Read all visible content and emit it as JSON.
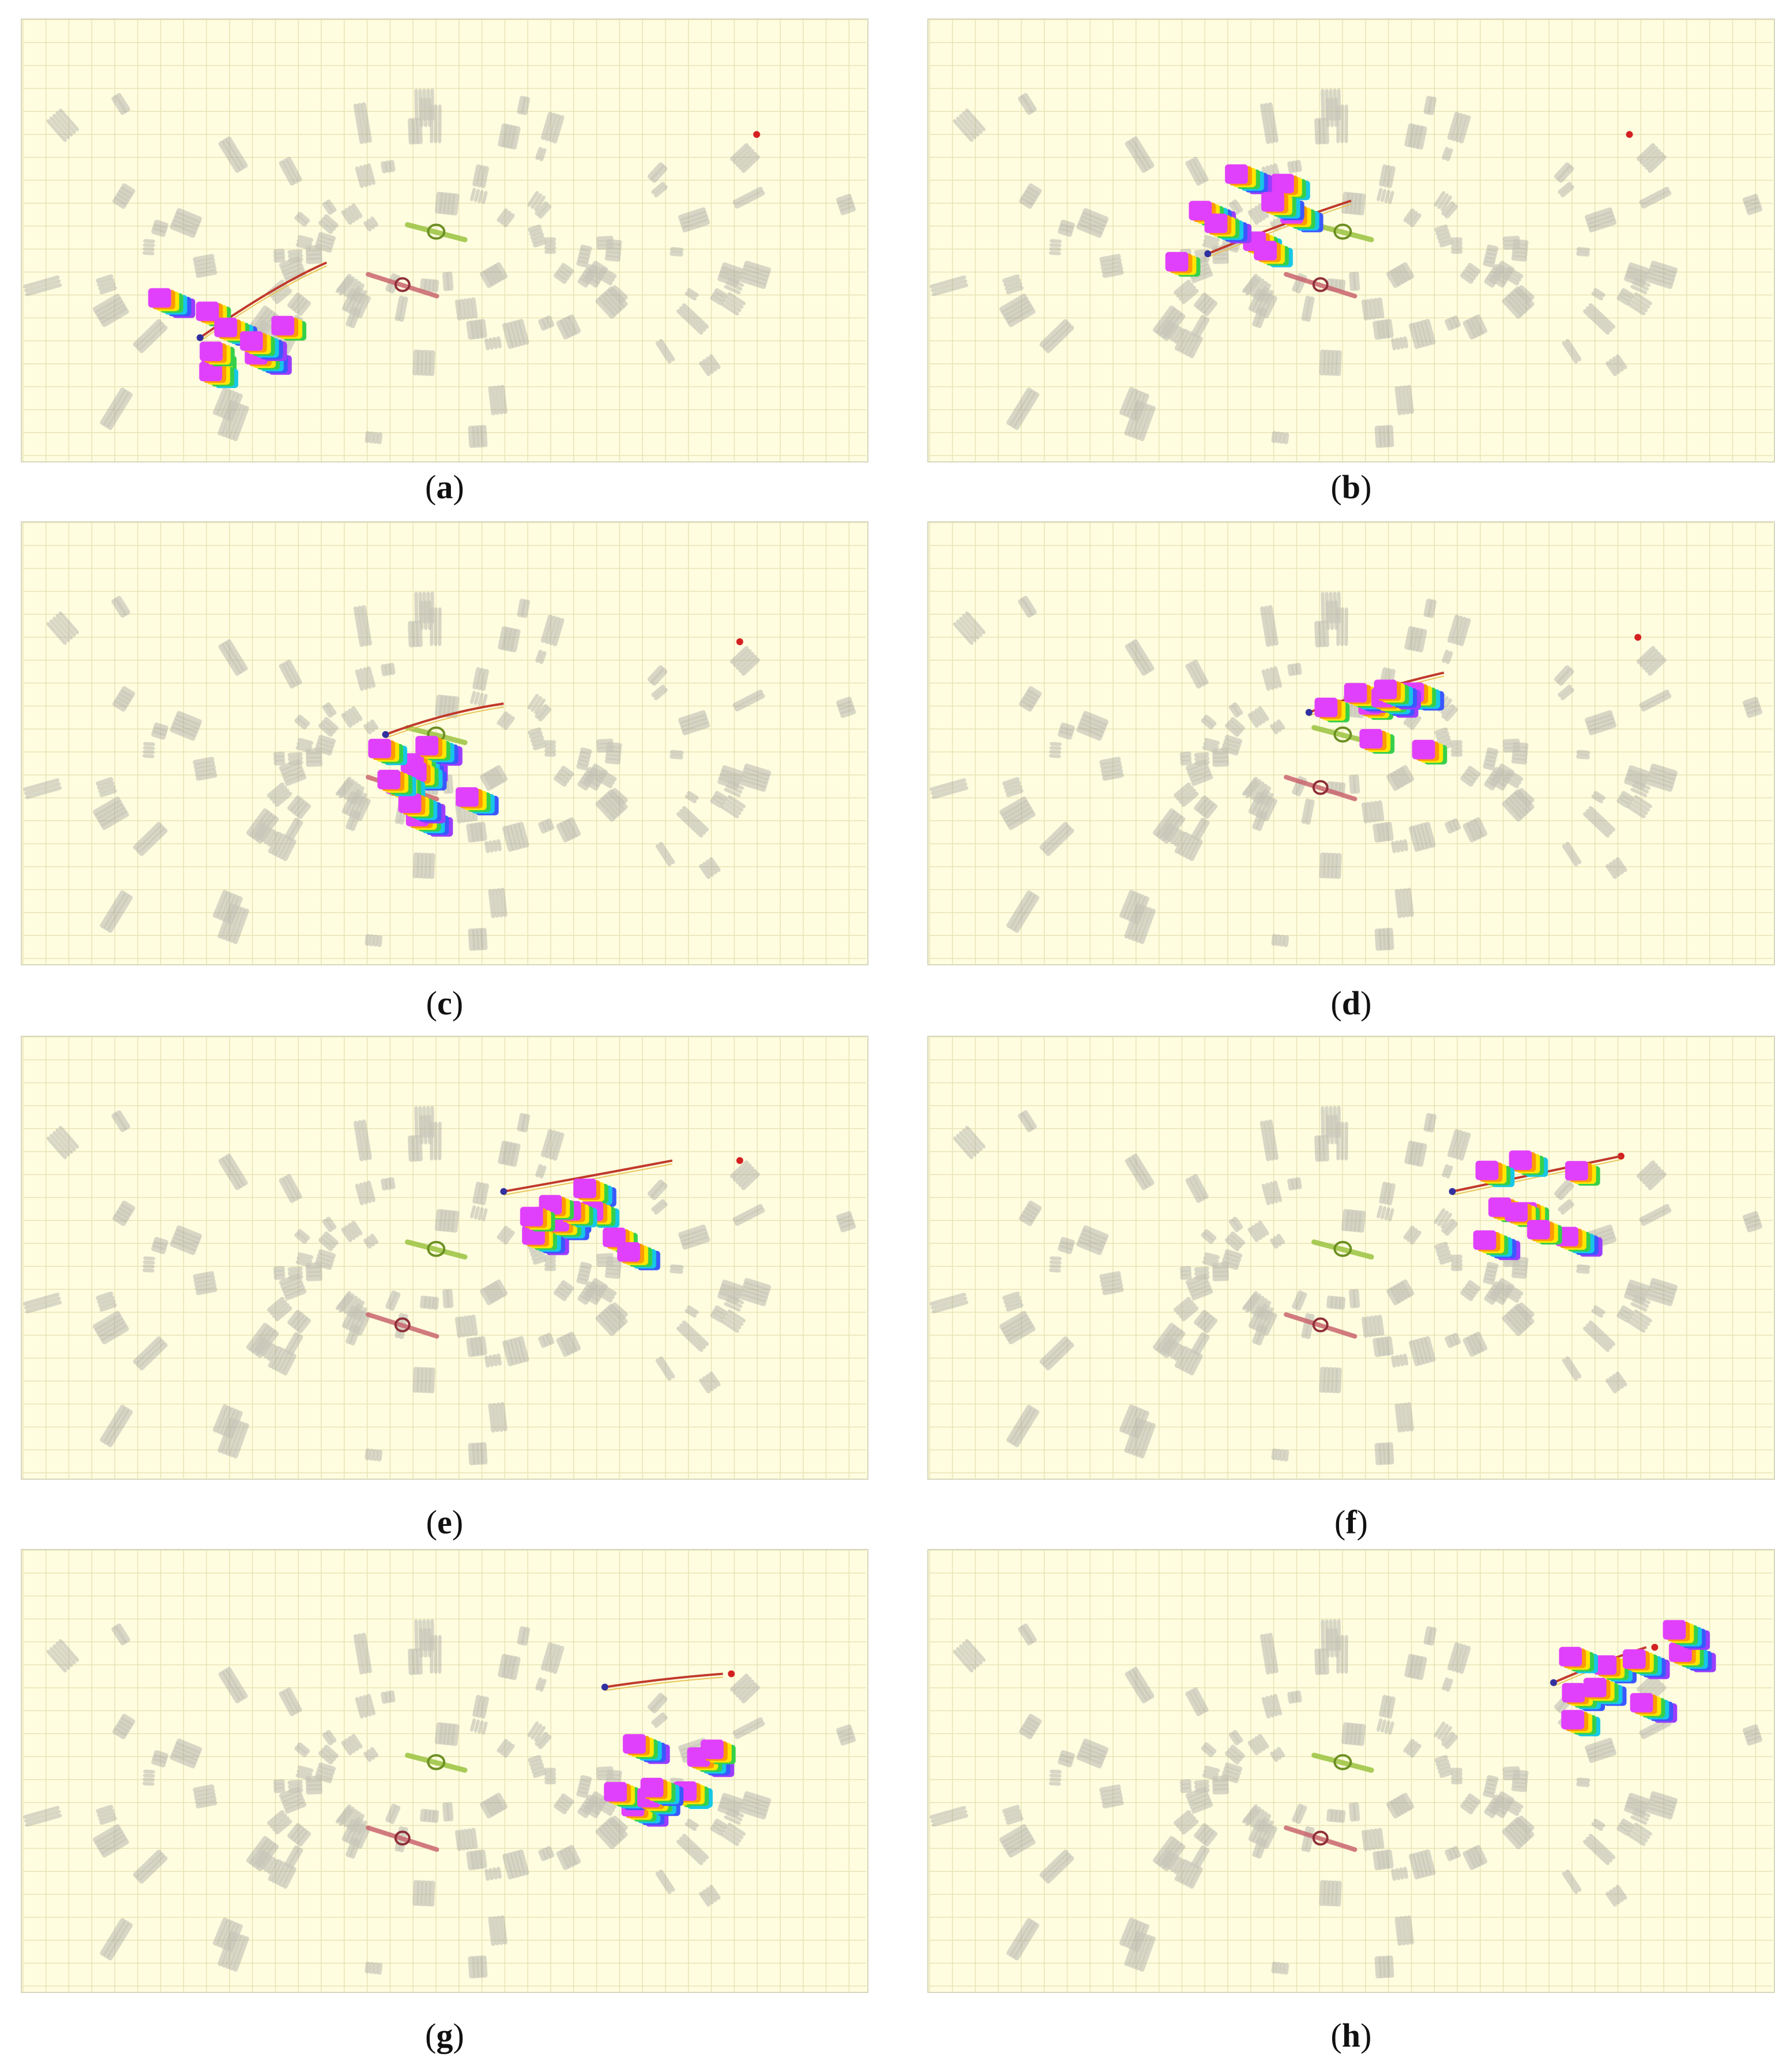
{
  "figure": {
    "panels": [
      {
        "id": "a",
        "label": "a",
        "swarm": {
          "center": [
            0.22,
            0.72
          ],
          "count": 9,
          "spread": 0.55
        },
        "path": [
          [
            0.21,
            0.72
          ],
          [
            0.3,
            0.6
          ],
          [
            0.36,
            0.55
          ]
        ],
        "goal": [
          0.87,
          0.26
        ]
      },
      {
        "id": "b",
        "label": "b",
        "swarm": {
          "center": [
            0.35,
            0.42
          ],
          "count": 9,
          "spread": 0.5
        },
        "path": [
          [
            0.33,
            0.53
          ],
          [
            0.42,
            0.46
          ],
          [
            0.5,
            0.41
          ]
        ],
        "goal": [
          0.83,
          0.26
        ]
      },
      {
        "id": "c",
        "label": "c",
        "swarm": {
          "center": [
            0.45,
            0.55
          ],
          "count": 9,
          "spread": 0.45
        },
        "path": [
          [
            0.43,
            0.48
          ],
          [
            0.5,
            0.43
          ],
          [
            0.57,
            0.41
          ]
        ],
        "goal": [
          0.85,
          0.27
        ]
      },
      {
        "id": "d",
        "label": "d",
        "swarm": {
          "center": [
            0.52,
            0.45
          ],
          "count": 9,
          "spread": 0.45
        },
        "path": [
          [
            0.45,
            0.43
          ],
          [
            0.52,
            0.38
          ],
          [
            0.61,
            0.34
          ]
        ],
        "goal": [
          0.84,
          0.26
        ]
      },
      {
        "id": "e",
        "label": "e",
        "swarm": {
          "center": [
            0.65,
            0.4
          ],
          "count": 10,
          "spread": 0.45
        },
        "path": [
          [
            0.57,
            0.35
          ],
          [
            0.66,
            0.32
          ],
          [
            0.77,
            0.28
          ]
        ],
        "goal": [
          0.85,
          0.28
        ]
      },
      {
        "id": "f",
        "label": "f",
        "swarm": {
          "center": [
            0.71,
            0.34
          ],
          "count": 9,
          "spread": 0.5
        },
        "path": [
          [
            0.62,
            0.35
          ],
          [
            0.72,
            0.31
          ],
          [
            0.82,
            0.27
          ]
        ],
        "goal": [
          0.82,
          0.27
        ]
      },
      {
        "id": "g",
        "label": "g",
        "swarm": {
          "center": [
            0.76,
            0.45
          ],
          "count": 9,
          "spread": 0.55
        },
        "path": [
          [
            0.69,
            0.31
          ],
          [
            0.76,
            0.29
          ],
          [
            0.83,
            0.28
          ]
        ],
        "goal": [
          0.84,
          0.28
        ]
      },
      {
        "id": "h",
        "label": "h",
        "swarm": {
          "center": [
            0.81,
            0.26
          ],
          "count": 9,
          "spread": 0.5
        },
        "path": [
          [
            0.74,
            0.3
          ],
          [
            0.8,
            0.25
          ],
          [
            0.85,
            0.22
          ]
        ],
        "goal": [
          0.86,
          0.22
        ]
      }
    ],
    "colors": {
      "background": "#fffde0",
      "grid": "#e7e3b6",
      "obstacle": "#9a9a9a",
      "path": "#c0392b",
      "goal": "#d42020",
      "agent": "#e040fb",
      "green_robot": "#9bc23f",
      "red_robot": "#c9646e"
    }
  }
}
